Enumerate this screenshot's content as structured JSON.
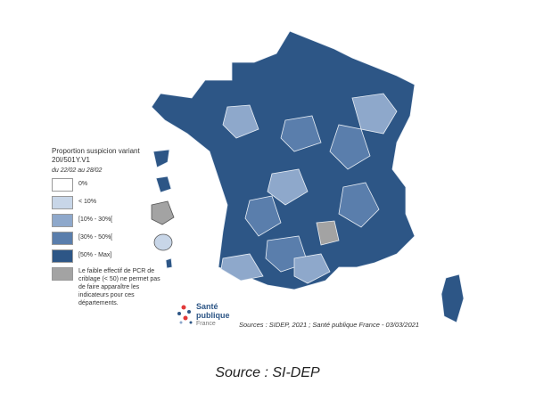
{
  "legend": {
    "title": "Proportion suspicion variant 20I/501Y.V1",
    "period": "du 22/02 au 28/02",
    "items": [
      {
        "label": "0%",
        "color": "#ffffff"
      },
      {
        "label": "< 10%",
        "color": "#c8d6e8"
      },
      {
        "label": "[10% - 30%[",
        "color": "#8ea8cb"
      },
      {
        "label": "[30% - 50%[",
        "color": "#5a7eac"
      },
      {
        "label": "[50% - Max]",
        "color": "#2d5686"
      },
      {
        "label": "Le faible effectif de PCR de criblage (< 50) ne permet pas de faire apparaître les indicateurs pour ces départements.",
        "color": "#a3a3a3"
      }
    ]
  },
  "logo": {
    "line1": "Santé",
    "line2": "publique",
    "line3": "France"
  },
  "sources": "Sources : SIDEP, 2021 ; Santé publique France - 03/03/2021",
  "caption": "Source : SI-DEP"
}
